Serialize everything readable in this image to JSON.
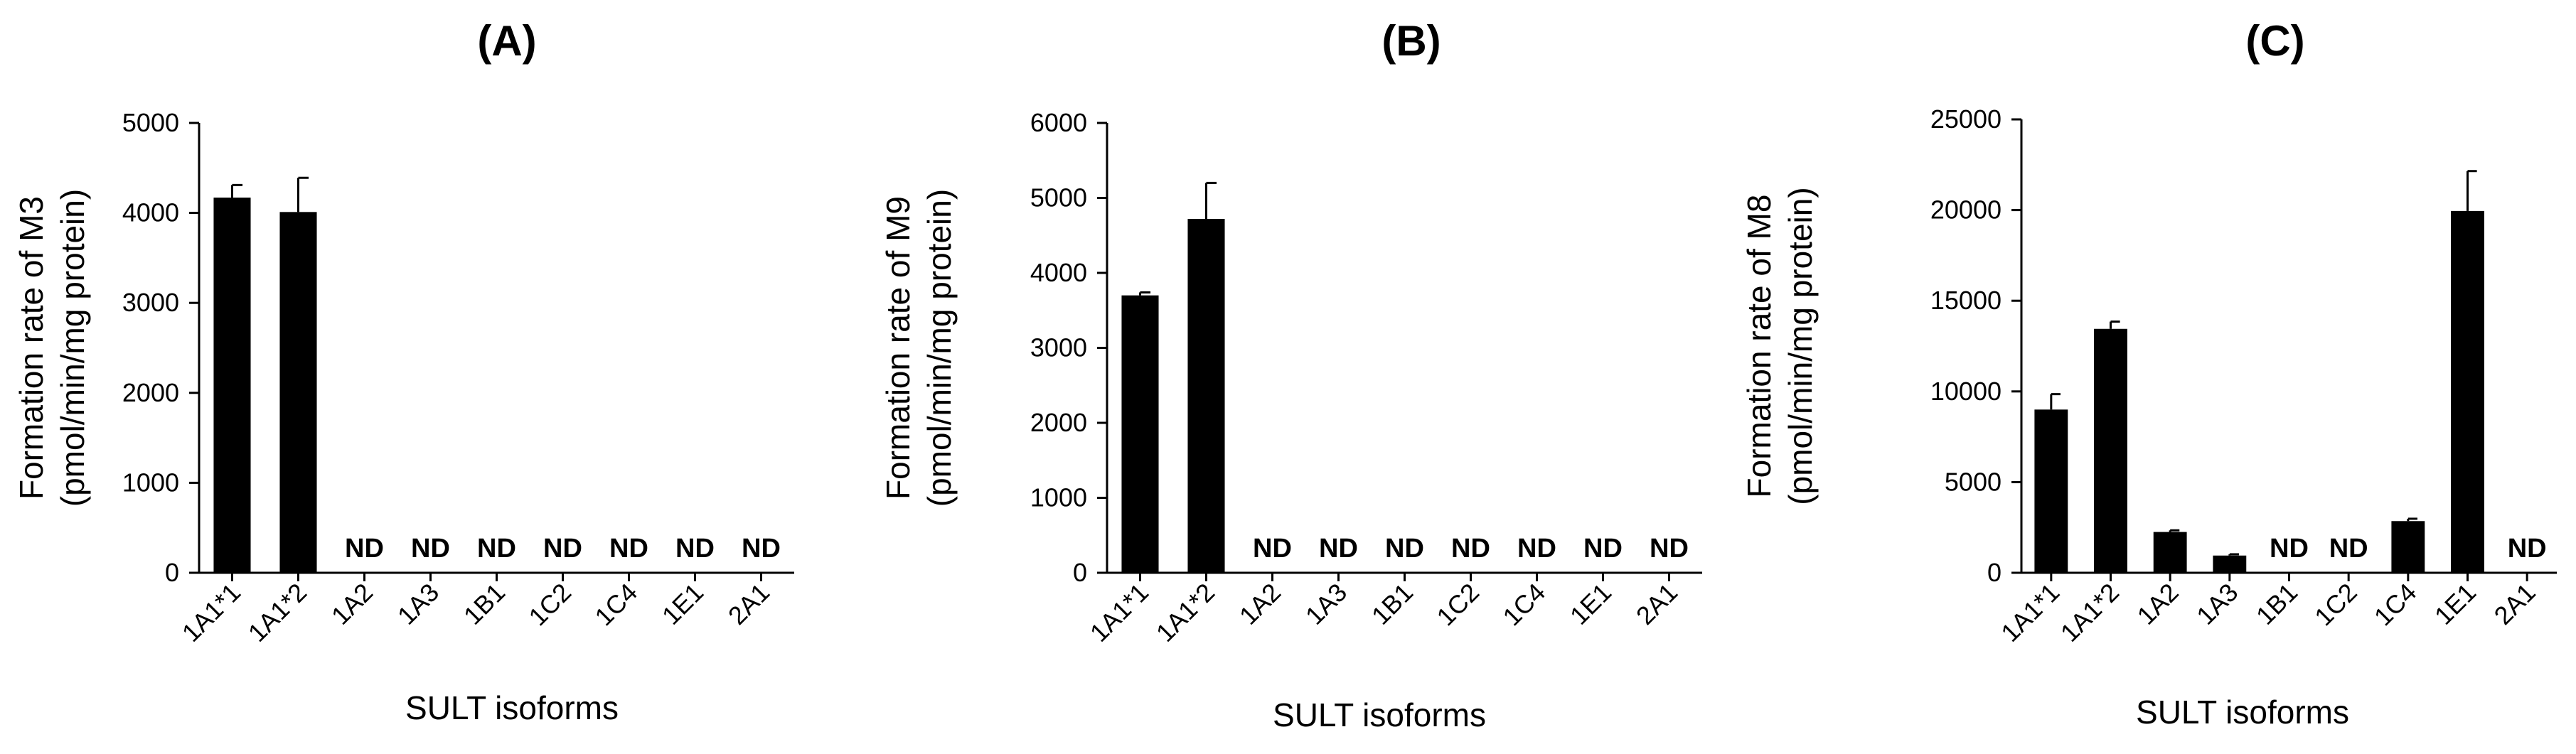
{
  "chart_data": [
    {
      "type": "bar",
      "title": "(A)",
      "xlabel": "SULT isoforms",
      "ylabel_line1": "Formation rate of M3",
      "ylabel_line2": "(pmol/min/mg protein)",
      "ylim": [
        0,
        5000
      ],
      "yticks": [
        0,
        1000,
        2000,
        3000,
        4000,
        5000
      ],
      "categories": [
        "1A1*1",
        "1A1*2",
        "1A2",
        "1A3",
        "1B1",
        "1C2",
        "1C4",
        "1E1",
        "2A1"
      ],
      "values": [
        4170,
        4010,
        null,
        null,
        null,
        null,
        null,
        null,
        null
      ],
      "errors": [
        140,
        380,
        null,
        null,
        null,
        null,
        null,
        null,
        null
      ],
      "not_detected_label": "ND",
      "bar_color": "#000000"
    },
    {
      "type": "bar",
      "title": "(B)",
      "xlabel": "SULT isoforms",
      "ylabel_line1": "Formation rate of M9",
      "ylabel_line2": "(pmol/min/mg protein)",
      "ylim": [
        0,
        6000
      ],
      "yticks": [
        0,
        1000,
        2000,
        3000,
        4000,
        5000,
        6000
      ],
      "categories": [
        "1A1*1",
        "1A1*2",
        "1A2",
        "1A3",
        "1B1",
        "1C2",
        "1C4",
        "1E1",
        "2A1"
      ],
      "values": [
        3700,
        4720,
        null,
        null,
        null,
        null,
        null,
        null,
        null
      ],
      "errors": [
        40,
        480,
        null,
        null,
        null,
        null,
        null,
        null,
        null
      ],
      "not_detected_label": "ND",
      "bar_color": "#000000"
    },
    {
      "type": "bar",
      "title": "(C)",
      "xlabel": "SULT isoforms",
      "ylabel_line1": "Formation rate of M8",
      "ylabel_line2": "(pmol/min/mg protein)",
      "ylim": [
        0,
        25000
      ],
      "yticks": [
        0,
        5000,
        10000,
        15000,
        20000,
        25000
      ],
      "categories": [
        "1A1*1",
        "1A1*2",
        "1A2",
        "1A3",
        "1B1",
        "1C2",
        "1C4",
        "1E1",
        "2A1"
      ],
      "values": [
        9000,
        13450,
        2250,
        950,
        null,
        null,
        2850,
        19950,
        null
      ],
      "errors": [
        850,
        400,
        90,
        70,
        null,
        null,
        130,
        2200,
        null
      ],
      "not_detected_label": "ND",
      "bar_color": "#000000"
    }
  ]
}
